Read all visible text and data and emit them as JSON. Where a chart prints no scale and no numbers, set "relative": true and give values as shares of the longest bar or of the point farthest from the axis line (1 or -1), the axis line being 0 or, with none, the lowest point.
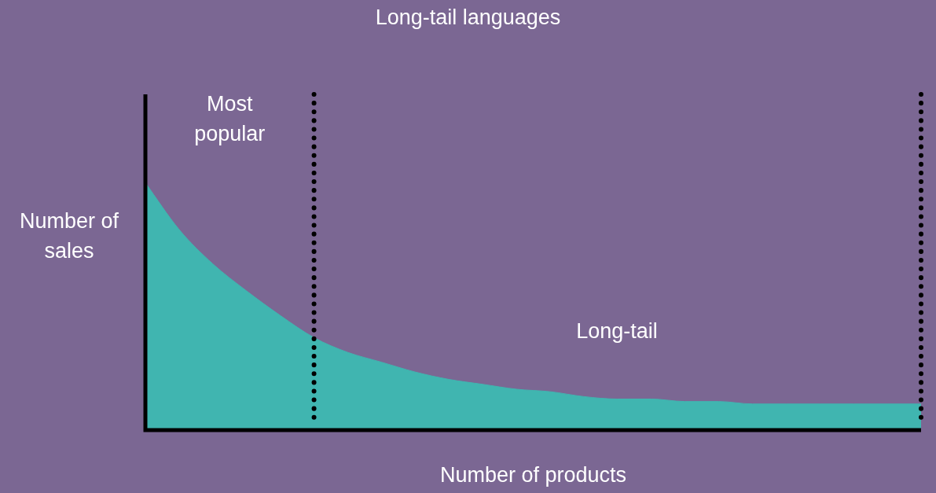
{
  "chart_data": {
    "type": "area",
    "title": "Long-tail languages",
    "xlabel": "Number of products",
    "ylabel": "Number of sales",
    "relative": true,
    "categories": [
      null,
      null,
      null,
      null,
      null,
      null,
      null,
      null,
      null,
      null,
      null,
      null,
      null,
      null,
      null,
      null,
      null,
      null,
      null,
      null,
      null,
      null,
      null,
      null
    ],
    "series": [
      {
        "color": "#40b5b0",
        "values": [
          1.0,
          0.81,
          0.67,
          0.56,
          0.46,
          0.37,
          0.31,
          0.27,
          0.23,
          0.2,
          0.18,
          0.16,
          0.15,
          0.13,
          0.12,
          0.12,
          0.11,
          0.11,
          0.1,
          0.1,
          0.1,
          0.1,
          0.1,
          0.1
        ]
      }
    ],
    "annotations": [
      "Most popular",
      "Long-tail"
    ],
    "legend": false
  }
}
